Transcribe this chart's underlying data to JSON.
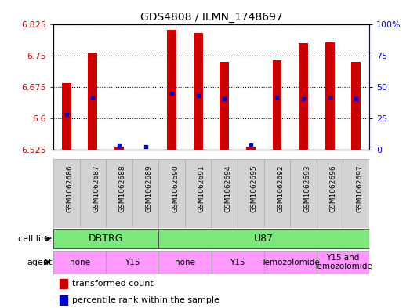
{
  "title": "GDS4808 / ILMN_1748697",
  "samples": [
    "GSM1062686",
    "GSM1062687",
    "GSM1062688",
    "GSM1062689",
    "GSM1062690",
    "GSM1062691",
    "GSM1062694",
    "GSM1062695",
    "GSM1062692",
    "GSM1062693",
    "GSM1062696",
    "GSM1062697"
  ],
  "red_values": [
    6.685,
    6.758,
    6.533,
    6.525,
    6.813,
    6.805,
    6.735,
    6.533,
    6.74,
    6.78,
    6.783,
    6.735
  ],
  "blue_values": [
    6.61,
    6.65,
    6.535,
    6.532,
    6.66,
    6.655,
    6.648,
    6.537,
    6.652,
    6.648,
    6.65,
    6.648
  ],
  "ymin": 6.525,
  "ymax": 6.825,
  "yticks": [
    6.525,
    6.6,
    6.675,
    6.75,
    6.825
  ],
  "ytick_labels": [
    "6.525",
    "6.6",
    "6.675",
    "6.75",
    "6.825"
  ],
  "y2ticks": [
    0,
    25,
    50,
    75,
    100
  ],
  "y2tick_labels": [
    "0",
    "25",
    "50",
    "75",
    "100%"
  ],
  "cell_line_groups": [
    {
      "label": "DBTRG",
      "start": 0,
      "end": 4,
      "color": "#7ee87e"
    },
    {
      "label": "U87",
      "start": 4,
      "end": 12,
      "color": "#7ee87e"
    }
  ],
  "agent_groups": [
    {
      "label": "none",
      "start": 0,
      "end": 2,
      "color": "#ff99ff"
    },
    {
      "label": "Y15",
      "start": 2,
      "end": 4,
      "color": "#ff99ff"
    },
    {
      "label": "none",
      "start": 4,
      "end": 6,
      "color": "#ff99ff"
    },
    {
      "label": "Y15",
      "start": 6,
      "end": 8,
      "color": "#ff99ff"
    },
    {
      "label": "Temozolomide",
      "start": 8,
      "end": 10,
      "color": "#ff99ff"
    },
    {
      "label": "Y15 and\nTemozolomide",
      "start": 10,
      "end": 12,
      "color": "#ff99ff"
    }
  ],
  "bar_color": "#cc0000",
  "dot_color": "#0000cc",
  "chart_bg": "#ffffff",
  "sample_bg": "#d3d3d3",
  "tick_color_left": "#cc0000",
  "tick_color_right": "#0000cc",
  "bar_width": 0.35,
  "legend_items": [
    {
      "label": "transformed count",
      "color": "#cc0000"
    },
    {
      "label": "percentile rank within the sample",
      "color": "#0000cc"
    }
  ]
}
